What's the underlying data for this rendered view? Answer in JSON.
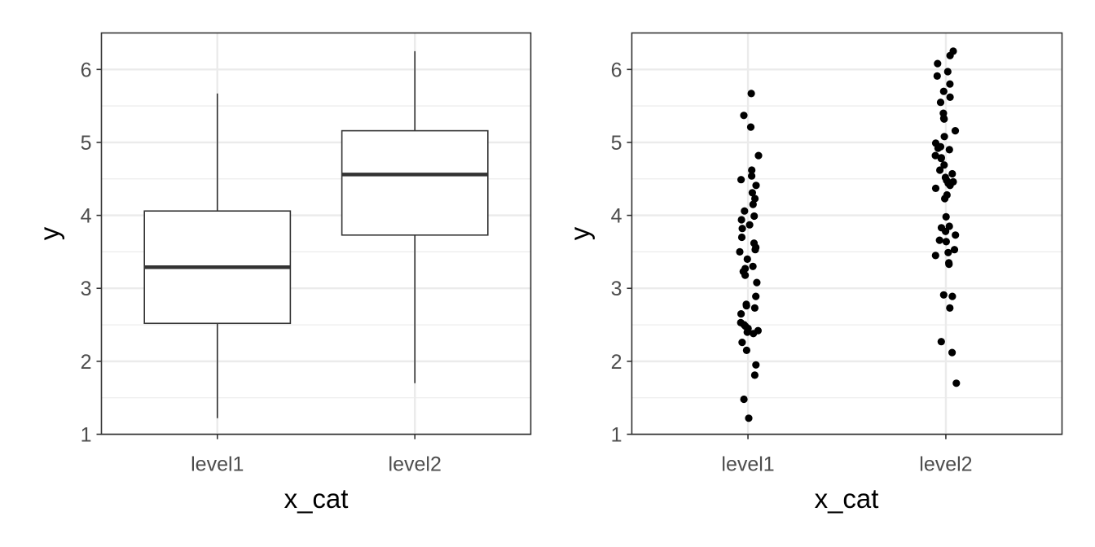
{
  "chart_data": [
    {
      "type": "boxplot",
      "xlabel": "x_cat",
      "ylabel": "y",
      "categories": [
        "level1",
        "level2"
      ],
      "ylim": [
        1,
        6.5
      ],
      "yticks": [
        1,
        2,
        3,
        4,
        5,
        6
      ],
      "grid": true,
      "boxes": [
        {
          "category": "level1",
          "min": 1.22,
          "q1": 2.52,
          "median": 3.29,
          "q3": 4.06,
          "max": 5.67
        },
        {
          "category": "level2",
          "min": 1.7,
          "q1": 3.73,
          "median": 4.56,
          "q3": 5.16,
          "max": 6.25
        }
      ]
    },
    {
      "type": "scatter",
      "xlabel": "x_cat",
      "ylabel": "y",
      "categories": [
        "level1",
        "level2"
      ],
      "ylim": [
        1,
        6.5
      ],
      "yticks": [
        1,
        2,
        3,
        4,
        5,
        6
      ],
      "grid": true,
      "jitter": true,
      "series": [
        {
          "category": "level1",
          "values": [
            5.67,
            5.37,
            5.21,
            4.82,
            4.62,
            4.54,
            4.49,
            4.41,
            4.31,
            4.23,
            4.15,
            4.06,
            3.99,
            3.94,
            3.87,
            3.82,
            3.7,
            3.62,
            3.56,
            3.53,
            3.5,
            3.4,
            3.3,
            3.27,
            3.23,
            3.18,
            3.08,
            2.89,
            2.78,
            2.76,
            2.73,
            2.65,
            2.53,
            2.5,
            2.48,
            2.45,
            2.42,
            2.4,
            2.38,
            2.26,
            2.15,
            1.95,
            1.81,
            1.48,
            1.22
          ]
        },
        {
          "category": "level2",
          "values": [
            6.25,
            6.19,
            6.08,
            5.97,
            5.91,
            5.8,
            5.7,
            5.62,
            5.55,
            5.4,
            5.33,
            5.32,
            5.16,
            5.08,
            4.99,
            4.94,
            4.92,
            4.9,
            4.82,
            4.79,
            4.78,
            4.69,
            4.62,
            4.57,
            4.52,
            4.48,
            4.46,
            4.44,
            4.41,
            4.37,
            4.28,
            4.23,
            3.98,
            3.85,
            3.83,
            3.78,
            3.73,
            3.66,
            3.64,
            3.53,
            3.49,
            3.45,
            3.35,
            3.33,
            2.91,
            2.89,
            2.73,
            2.27,
            2.12,
            1.7
          ]
        }
      ]
    }
  ]
}
